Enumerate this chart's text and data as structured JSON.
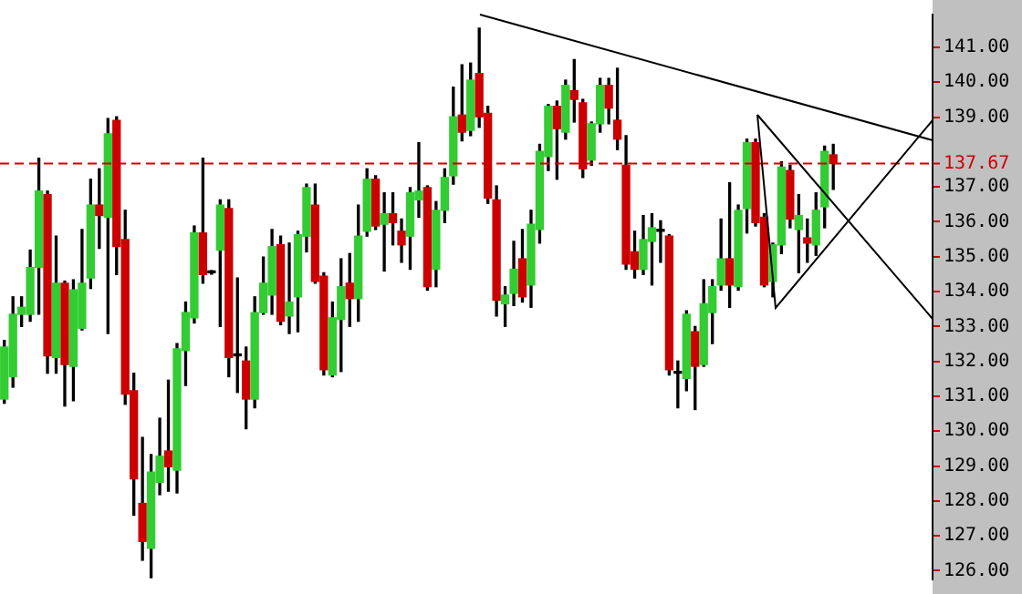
{
  "chart_data": {
    "type": "candlestick",
    "categories": [
      null,
      null,
      null,
      null,
      null,
      null,
      null,
      null,
      null,
      null,
      null,
      null,
      null,
      null,
      null,
      null,
      null,
      null,
      null,
      null,
      null,
      null,
      null,
      null,
      null,
      null,
      null,
      null,
      null,
      null,
      null,
      null,
      null,
      null,
      null,
      null,
      null,
      null,
      null,
      null,
      null,
      null,
      null,
      null,
      null,
      null,
      null,
      null,
      null,
      null,
      null,
      null,
      null,
      null,
      null,
      null,
      null,
      null,
      null,
      null,
      null,
      null,
      null,
      null,
      null,
      null,
      null,
      null,
      null,
      null,
      null,
      null,
      null,
      null,
      null,
      null,
      null,
      null,
      null,
      null,
      null,
      null,
      null,
      null,
      null,
      null,
      null,
      null,
      null,
      null,
      null,
      null,
      null,
      null,
      null,
      null,
      null,
      null,
      null,
      null,
      null,
      null,
      null,
      null,
      null,
      null,
      null,
      null
    ],
    "ohlc": [
      [
        130.92,
        132.6,
        130.8,
        132.41
      ],
      [
        131.56,
        133.85,
        131.26,
        133.35
      ],
      [
        133.35,
        133.85,
        133.0,
        133.55
      ],
      [
        133.35,
        135.19,
        133.15,
        134.69
      ],
      [
        134.69,
        137.82,
        133.35,
        136.88
      ],
      [
        136.78,
        136.88,
        131.66,
        132.16
      ],
      [
        132.11,
        135.59,
        131.66,
        134.24
      ],
      [
        134.24,
        134.3,
        130.72,
        131.91
      ],
      [
        131.86,
        134.34,
        130.87,
        134.05
      ],
      [
        132.95,
        135.78,
        132.9,
        134.24
      ],
      [
        134.39,
        137.22,
        134.09,
        136.48
      ],
      [
        136.48,
        137.52,
        135.24,
        136.18
      ],
      [
        136.13,
        138.96,
        132.8,
        138.52
      ],
      [
        138.91,
        139.01,
        134.49,
        135.29
      ],
      [
        135.49,
        136.33,
        130.77,
        131.06
      ],
      [
        131.16,
        131.66,
        127.59,
        128.63
      ],
      [
        127.93,
        129.82,
        126.3,
        126.84
      ],
      [
        126.64,
        129.33,
        125.8,
        128.83
      ],
      [
        128.53,
        130.37,
        128.18,
        129.28
      ],
      [
        129.43,
        131.46,
        128.28,
        128.98
      ],
      [
        128.88,
        132.51,
        128.23,
        132.36
      ],
      [
        132.31,
        133.7,
        131.31,
        133.4
      ],
      [
        133.25,
        135.88,
        133.1,
        135.68
      ],
      [
        135.68,
        137.82,
        134.24,
        134.49
      ],
      [
        134.54,
        134.6,
        134.5,
        134.54
      ],
      [
        135.19,
        136.63,
        133.0,
        136.48
      ],
      [
        136.38,
        136.63,
        131.56,
        132.11
      ],
      [
        132.16,
        134.39,
        131.11,
        132.16
      ],
      [
        132.01,
        132.41,
        130.07,
        130.92
      ],
      [
        130.92,
        133.85,
        130.67,
        133.4
      ],
      [
        133.4,
        134.99,
        133.35,
        134.24
      ],
      [
        133.9,
        135.78,
        133.35,
        135.29
      ],
      [
        135.34,
        135.59,
        133.05,
        133.15
      ],
      [
        133.3,
        135.39,
        132.8,
        133.7
      ],
      [
        133.85,
        135.73,
        132.85,
        135.63
      ],
      [
        135.59,
        137.08,
        135.14,
        136.98
      ],
      [
        136.48,
        137.08,
        134.24,
        134.29
      ],
      [
        134.44,
        134.54,
        131.61,
        131.76
      ],
      [
        131.61,
        133.7,
        131.56,
        133.25
      ],
      [
        133.2,
        134.94,
        131.71,
        134.14
      ],
      [
        134.24,
        135.09,
        133.0,
        133.8
      ],
      [
        133.8,
        136.48,
        133.15,
        135.59
      ],
      [
        135.73,
        137.52,
        135.59,
        137.22
      ],
      [
        137.22,
        137.32,
        135.78,
        135.88
      ],
      [
        135.93,
        136.83,
        134.59,
        136.23
      ],
      [
        136.23,
        136.83,
        135.34,
        135.98
      ],
      [
        135.73,
        136.08,
        134.84,
        135.34
      ],
      [
        135.59,
        136.98,
        134.64,
        136.83
      ],
      [
        136.63,
        138.27,
        136.13,
        136.88
      ],
      [
        136.98,
        137.03,
        134.04,
        134.14
      ],
      [
        134.64,
        136.58,
        134.14,
        136.33
      ],
      [
        136.33,
        137.52,
        135.98,
        137.27
      ],
      [
        137.32,
        139.86,
        137.08,
        139.01
      ],
      [
        139.06,
        140.5,
        138.32,
        138.57
      ],
      [
        138.62,
        140.55,
        138.47,
        140.06
      ],
      [
        140.25,
        141.55,
        138.71,
        139.01
      ],
      [
        139.11,
        139.31,
        136.53,
        136.68
      ],
      [
        136.63,
        137.03,
        133.3,
        133.75
      ],
      [
        133.65,
        134.14,
        133.0,
        133.9
      ],
      [
        133.95,
        135.44,
        133.6,
        134.64
      ],
      [
        134.94,
        135.78,
        133.7,
        133.85
      ],
      [
        134.19,
        136.33,
        133.55,
        135.93
      ],
      [
        135.78,
        138.22,
        135.39,
        138.02
      ],
      [
        137.87,
        139.36,
        137.47,
        139.31
      ],
      [
        139.31,
        139.46,
        137.22,
        138.67
      ],
      [
        138.57,
        140.06,
        138.37,
        139.91
      ],
      [
        139.76,
        140.65,
        138.86,
        139.51
      ],
      [
        139.41,
        139.51,
        137.27,
        137.52
      ],
      [
        137.77,
        138.86,
        137.62,
        138.81
      ],
      [
        138.81,
        140.11,
        138.57,
        139.91
      ],
      [
        139.91,
        140.11,
        138.81,
        139.26
      ],
      [
        138.91,
        140.4,
        138.07,
        138.37
      ],
      [
        137.62,
        138.47,
        134.64,
        134.79
      ],
      [
        135.14,
        135.73,
        134.39,
        134.64
      ],
      [
        134.64,
        136.18,
        134.49,
        135.49
      ],
      [
        135.44,
        136.23,
        134.19,
        135.83
      ],
      [
        135.73,
        136.03,
        134.84,
        135.73
      ],
      [
        135.59,
        135.63,
        131.61,
        131.76
      ],
      [
        131.66,
        132.01,
        130.67,
        131.66
      ],
      [
        131.51,
        133.45,
        131.16,
        133.35
      ],
      [
        132.85,
        133.0,
        130.62,
        131.86
      ],
      [
        131.91,
        134.34,
        131.86,
        133.65
      ],
      [
        133.4,
        134.34,
        132.51,
        134.14
      ],
      [
        134.19,
        136.08,
        134.04,
        134.94
      ],
      [
        134.94,
        137.12,
        133.55,
        134.19
      ],
      [
        134.14,
        136.48,
        134.04,
        136.33
      ],
      [
        136.38,
        138.37,
        135.68,
        138.27
      ],
      [
        138.27,
        138.37,
        135.88,
        135.98
      ],
      [
        136.13,
        136.23,
        134.14,
        134.19
      ],
      [
        134.29,
        135.39,
        133.85,
        135.34
      ],
      [
        135.34,
        137.72,
        135.09,
        137.57
      ],
      [
        137.47,
        137.62,
        135.83,
        136.08
      ],
      [
        135.78,
        136.78,
        134.54,
        136.18
      ],
      [
        135.54,
        136.08,
        134.84,
        135.39
      ],
      [
        135.34,
        136.83,
        135.04,
        136.33
      ],
      [
        136.43,
        138.17,
        135.83,
        138.02
      ],
      [
        137.92,
        138.22,
        136.93,
        137.67
      ],
      null,
      null,
      null,
      null,
      null,
      null,
      null,
      null,
      null,
      null,
      null
    ],
    "colors": [
      "#33cc33",
      "#33cc33",
      "#33cc33",
      "#33cc33",
      "#33cc33",
      "#cc0000",
      "#33cc33",
      "#cc0000",
      "#33cc33",
      "#33cc33",
      "#33cc33",
      "#cc0000",
      "#33cc33",
      "#cc0000",
      "#cc0000",
      "#cc0000",
      "#cc0000",
      "#33cc33",
      "#33cc33",
      "#cc0000",
      "#33cc33",
      "#33cc33",
      "#33cc33",
      "#cc0000",
      "#000000",
      "#33cc33",
      "#cc0000",
      "#000000",
      "#cc0000",
      "#33cc33",
      "#33cc33",
      "#33cc33",
      "#cc0000",
      "#33cc33",
      "#33cc33",
      "#33cc33",
      "#cc0000",
      "#cc0000",
      "#33cc33",
      "#33cc33",
      "#cc0000",
      "#33cc33",
      "#33cc33",
      "#cc0000",
      "#33cc33",
      "#cc0000",
      "#cc0000",
      "#33cc33",
      "#33cc33",
      "#cc0000",
      "#33cc33",
      "#33cc33",
      "#33cc33",
      "#cc0000",
      "#33cc33",
      "#cc0000",
      "#cc0000",
      "#cc0000",
      "#33cc33",
      "#33cc33",
      "#cc0000",
      "#33cc33",
      "#33cc33",
      "#33cc33",
      "#cc0000",
      "#33cc33",
      "#cc0000",
      "#cc0000",
      "#33cc33",
      "#33cc33",
      "#cc0000",
      "#cc0000",
      "#cc0000",
      "#cc0000",
      "#33cc33",
      "#33cc33",
      "#000000",
      "#cc0000",
      "#000000",
      "#33cc33",
      "#cc0000",
      "#33cc33",
      "#33cc33",
      "#33cc33",
      "#cc0000",
      "#33cc33",
      "#33cc33",
      "#cc0000",
      "#cc0000",
      "#33cc33",
      "#33cc33",
      "#cc0000",
      "#33cc33",
      "#cc0000",
      "#33cc33",
      "#33cc33",
      "#cc0000",
      null,
      null,
      null,
      null,
      null,
      null,
      null,
      null,
      null,
      null,
      null
    ],
    "ylim": [
      125.75,
      141.94
    ],
    "yticks": [
      {
        "value": 126,
        "label": "126.00"
      },
      {
        "value": 127,
        "label": "127.00"
      },
      {
        "value": 128,
        "label": "128.00"
      },
      {
        "value": 129,
        "label": "129.00"
      },
      {
        "value": 130,
        "label": "130.00"
      },
      {
        "value": 131,
        "label": "131.00"
      },
      {
        "value": 132,
        "label": "132.00"
      },
      {
        "value": 133,
        "label": "133.00"
      },
      {
        "value": 134,
        "label": "134.00"
      },
      {
        "value": 135,
        "label": "135.00"
      },
      {
        "value": 136,
        "label": "136.00"
      },
      {
        "value": 137,
        "label": "137.00"
      },
      {
        "value": 139,
        "label": "139.00"
      },
      {
        "value": 140,
        "label": "140.00"
      },
      {
        "value": 141,
        "label": "141.00"
      }
    ],
    "ref_lines": [
      {
        "axis": "y",
        "value": 137.67,
        "label": "137.67",
        "color": "#cc0000",
        "line_style": "dashed"
      }
    ],
    "tick_labels": "y"
  }
}
